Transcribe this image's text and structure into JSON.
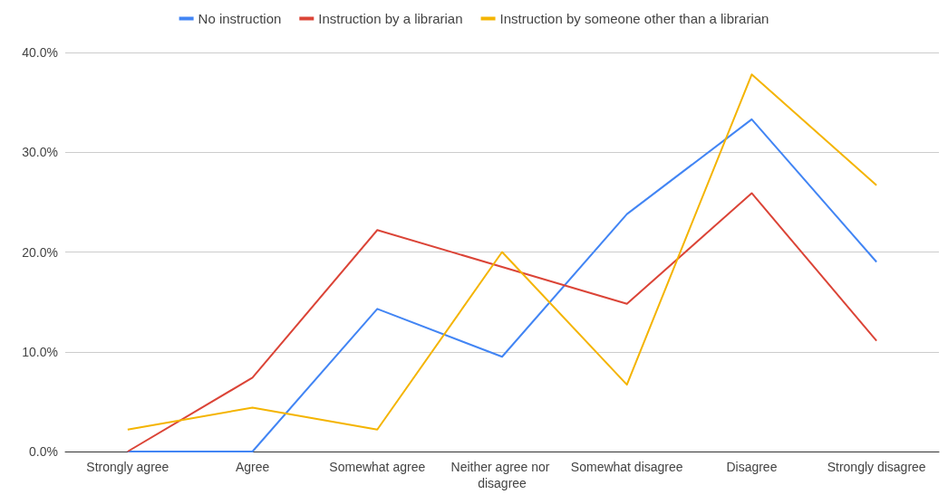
{
  "chart_data": {
    "type": "line",
    "categories": [
      "Strongly agree",
      "Agree",
      "Somewhat agree",
      "Neither agree nor disagree",
      "Somewhat disagree",
      "Disagree",
      "Strongly disagree"
    ],
    "series": [
      {
        "name": "No instruction",
        "color": "#4285f4",
        "values": [
          0,
          0,
          14.3,
          9.5,
          23.8,
          33.3,
          19.0
        ]
      },
      {
        "name": "Instruction by a librarian",
        "color": "#db4437",
        "values": [
          0,
          7.4,
          22.2,
          18.5,
          14.8,
          25.9,
          11.1
        ]
      },
      {
        "name": "Instruction by someone other than a librarian",
        "color": "#f4b400",
        "values": [
          2.2,
          4.4,
          2.2,
          20.0,
          6.7,
          37.8,
          26.7
        ]
      }
    ],
    "ylim": [
      0,
      40
    ],
    "yticks": [
      {
        "value": 0,
        "label": "0.0%"
      },
      {
        "value": 10,
        "label": "10.0%"
      },
      {
        "value": 20,
        "label": "20.0%"
      },
      {
        "value": 30,
        "label": "30.0%"
      },
      {
        "value": 40,
        "label": "40.0%"
      }
    ],
    "grid": "y",
    "legend": "top",
    "marker": "none",
    "line_style": "solid"
  }
}
